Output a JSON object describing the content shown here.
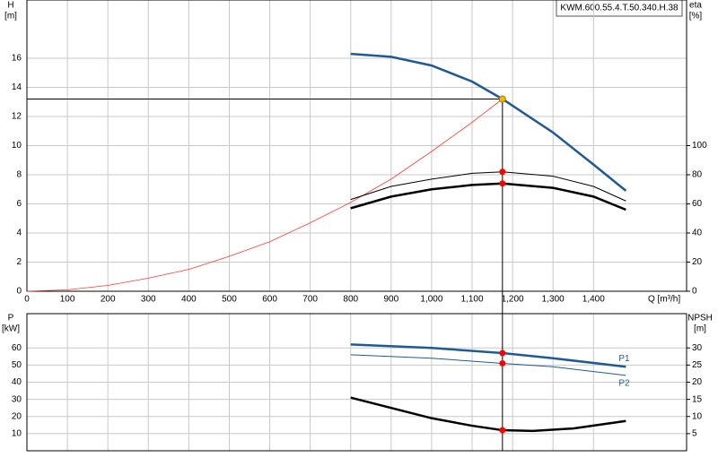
{
  "chart_data": [
    {
      "type": "line",
      "title": "KWM.600.55.4.T.50.340.H.38",
      "xlabel": "Q [m³/h]",
      "ylabel": "H",
      "ylabel_unit": "[m]",
      "y2label": "eta",
      "y2label_unit": "[%]",
      "xlim": [
        0,
        1630
      ],
      "xticks": [
        0,
        100,
        200,
        300,
        400,
        500,
        600,
        700,
        800,
        900,
        {
          "value": 1000,
          "label": "1,000"
        },
        {
          "value": 1100,
          "label": "1,100"
        },
        {
          "value": 1200,
          "label": "1,200"
        },
        {
          "value": 1300,
          "label": "1,300"
        },
        {
          "value": 1400,
          "label": "1,400"
        }
      ],
      "ylim": [
        0,
        20
      ],
      "yticks": [
        0,
        2,
        4,
        6,
        8,
        10,
        12,
        14,
        16
      ],
      "y2lim": [
        0,
        200
      ],
      "y2ticks": [
        0,
        20,
        40,
        60,
        80,
        100
      ],
      "grid": true,
      "series": [
        {
          "color": "#1f5a96",
          "width": 2.5,
          "x": [
            800,
            900,
            1000,
            1100,
            1175,
            1300,
            1400,
            1480
          ],
          "values": [
            16.3,
            16.1,
            15.5,
            14.4,
            13.2,
            10.9,
            8.7,
            6.9
          ]
        },
        {
          "color": "#ff3b30",
          "width": 0.8,
          "x": [
            0,
            100,
            200,
            300,
            400,
            500,
            600,
            700,
            800,
            900,
            1000,
            1100,
            1175
          ],
          "values": [
            0,
            0.1,
            0.4,
            0.9,
            1.5,
            2.4,
            3.4,
            4.7,
            6.1,
            7.7,
            9.6,
            11.6,
            13.2
          ]
        },
        {
          "color": "#000000",
          "width": 1,
          "axis": "y2",
          "x": [
            800,
            900,
            1000,
            1100,
            1175,
            1300,
            1400,
            1480
          ],
          "values": [
            63,
            72,
            77,
            81,
            82,
            79,
            72,
            62
          ]
        },
        {
          "color": "#000000",
          "width": 2.5,
          "axis": "y2",
          "x": [
            800,
            900,
            1000,
            1100,
            1175,
            1300,
            1400,
            1480
          ],
          "values": [
            57,
            65,
            70,
            73,
            74,
            71,
            65,
            56
          ]
        }
      ],
      "points": [
        {
          "x": 1175,
          "y": 13.2,
          "color": "#f5b800"
        },
        {
          "x": 1175,
          "y": 82,
          "color": "#ff0000",
          "axis": "y2"
        },
        {
          "x": 1175,
          "y": 74,
          "color": "#ff0000",
          "axis": "y2"
        }
      ]
    },
    {
      "type": "line",
      "ylabel": "P",
      "ylabel_unit": "[kW]",
      "y2label": "NPSH",
      "y2label_unit": "[m]",
      "xlim": [
        0,
        1630
      ],
      "ylim": [
        0,
        80
      ],
      "yticks": [
        10,
        20,
        30,
        40,
        50,
        60
      ],
      "y2lim": [
        0,
        40
      ],
      "y2ticks": [
        5,
        10,
        15,
        20,
        25,
        30
      ],
      "grid": true,
      "series": [
        {
          "name": "P1",
          "color": "#1f5a96",
          "width": 2.5,
          "x": [
            800,
            1000,
            1175,
            1300,
            1480
          ],
          "values": [
            62,
            60,
            57,
            54,
            49
          ]
        },
        {
          "name": "P2",
          "color": "#1f5a96",
          "width": 1,
          "x": [
            800,
            1000,
            1175,
            1300,
            1480
          ],
          "values": [
            56,
            54,
            51,
            49,
            44
          ]
        },
        {
          "color": "#000000",
          "width": 2.5,
          "axis": "y2",
          "x": [
            800,
            900,
            1000,
            1100,
            1175,
            1250,
            1350,
            1480
          ],
          "values": [
            15.5,
            12.5,
            9.5,
            7.3,
            6,
            5.8,
            6.5,
            8.7
          ]
        }
      ],
      "points": [
        {
          "x": 1175,
          "y": 57,
          "color": "#ff0000"
        },
        {
          "x": 1175,
          "y": 51,
          "color": "#ff0000"
        },
        {
          "x": 1175,
          "y": 6,
          "color": "#ff0000",
          "axis": "y2"
        }
      ]
    }
  ]
}
